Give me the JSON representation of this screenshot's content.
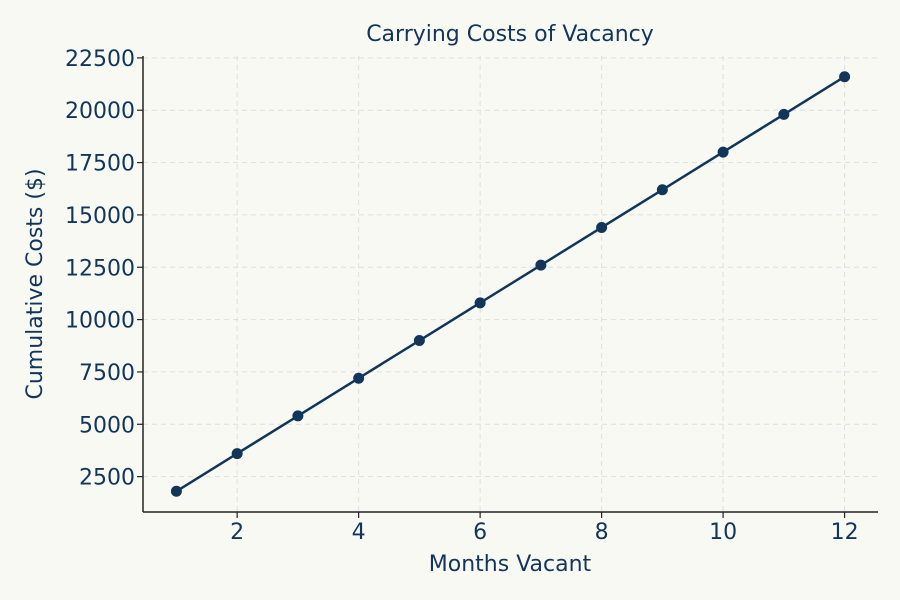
{
  "chart_data": {
    "type": "line",
    "title": "Carrying Costs of Vacancy",
    "xlabel": "Months Vacant",
    "ylabel": "Cumulative Costs ($)",
    "x": [
      1,
      2,
      3,
      4,
      5,
      6,
      7,
      8,
      9,
      10,
      11,
      12
    ],
    "series": [
      {
        "values": [
          1800,
          3600,
          5400,
          7200,
          9000,
          10800,
          12600,
          14400,
          16200,
          18000,
          19800,
          21600
        ],
        "color": "#12365a",
        "marker": "circle"
      }
    ],
    "xlim": [
      0.45,
      12.55
    ],
    "ylim": [
      810,
      22590
    ],
    "xticks": [
      2,
      4,
      6,
      8,
      10,
      12
    ],
    "yticks": [
      2500,
      5000,
      7500,
      10000,
      12500,
      15000,
      17500,
      20000,
      22500
    ],
    "grid": true
  }
}
